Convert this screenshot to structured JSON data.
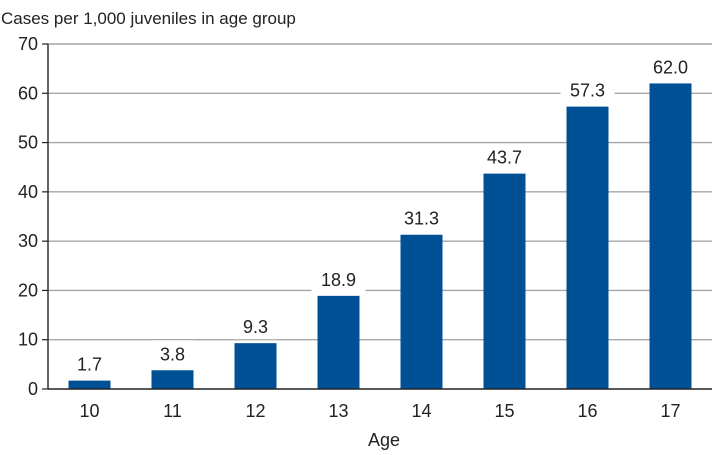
{
  "chart_data": {
    "type": "bar",
    "title": "",
    "ylabel": "Cases per 1,000 juveniles in age group",
    "xlabel": "Age",
    "categories": [
      "10",
      "11",
      "12",
      "13",
      "14",
      "15",
      "16",
      "17"
    ],
    "values": [
      1.7,
      3.8,
      9.3,
      18.9,
      31.3,
      43.7,
      57.3,
      62.0
    ],
    "value_labels": [
      "1.7",
      "3.8",
      "9.3",
      "18.9",
      "31.3",
      "43.7",
      "57.3",
      "62.0"
    ],
    "ylim": [
      0,
      70
    ],
    "yticks": [
      0,
      10,
      20,
      30,
      40,
      50,
      60,
      70
    ],
    "grid": true,
    "legend": "none",
    "colors": {
      "bar": "#005096",
      "grid": "#a6a6a6",
      "axis": "#222222"
    }
  }
}
